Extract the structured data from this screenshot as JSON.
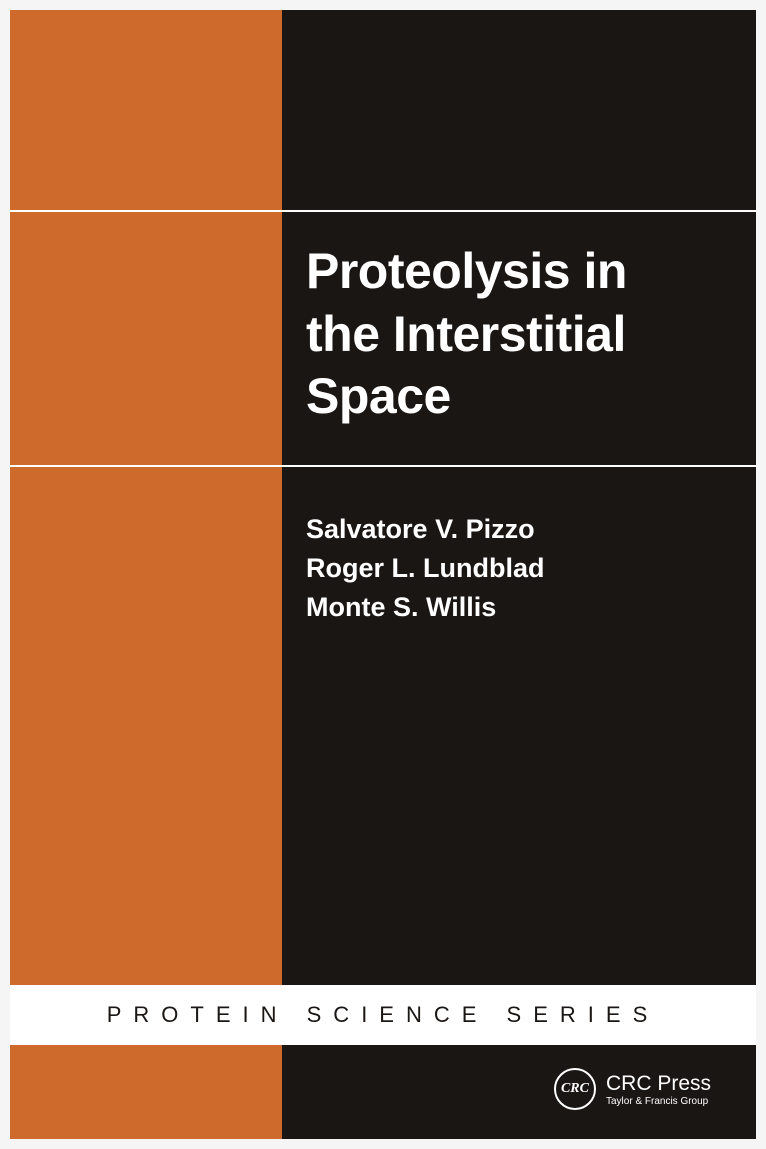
{
  "colors": {
    "orange": "#cd6a2c",
    "black": "#1a1614",
    "white": "#ffffff",
    "page_bg": "#f5f5f5"
  },
  "layout": {
    "cover_width": 746,
    "cover_height": 1129,
    "orange_panel_width": 272,
    "orange_panel_height": 975,
    "top_rule_y": 200,
    "mid_rule_y": 455,
    "series_band_y": 975,
    "series_band_height": 60,
    "bottom_band_y": 1035
  },
  "title": {
    "line1": "Proteolysis in",
    "line2": "the Interstitial",
    "line3": "Space",
    "fontsize": 50,
    "fontweight": "bold",
    "color": "#ffffff"
  },
  "authors": {
    "line1": "Salvatore V. Pizzo",
    "line2": "Roger L. Lundblad",
    "line3": "Monte S. Willis",
    "fontsize": 27,
    "fontweight": "bold",
    "color": "#ffffff"
  },
  "series": {
    "label": "PROTEIN SCIENCE SERIES",
    "fontsize": 22,
    "letter_spacing": 12,
    "color": "#1a1614",
    "background": "#ffffff"
  },
  "publisher": {
    "logo_text": "CRC",
    "name": "CRC Press",
    "tagline": "Taylor & Francis Group",
    "name_fontsize": 21,
    "tagline_fontsize": 10,
    "color": "#ffffff"
  }
}
